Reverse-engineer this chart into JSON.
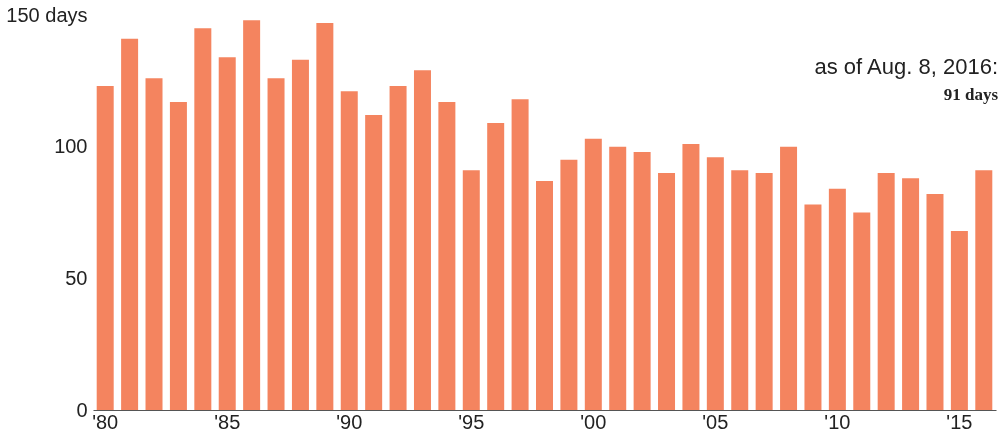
{
  "chart_data": {
    "type": "bar",
    "categories": [
      "'80",
      null,
      null,
      null,
      null,
      "'85",
      null,
      null,
      null,
      null,
      "'90",
      null,
      null,
      null,
      null,
      "'95",
      null,
      null,
      null,
      null,
      "'00",
      null,
      null,
      null,
      null,
      "'05",
      null,
      null,
      null,
      null,
      "'10",
      null,
      null,
      null,
      null,
      "'15",
      null
    ],
    "values": [
      123,
      141,
      126,
      117,
      145,
      134,
      148,
      126,
      133,
      147,
      121,
      112,
      123,
      129,
      117,
      91,
      109,
      118,
      87,
      95,
      103,
      100,
      98,
      90,
      101,
      96,
      91,
      90,
      100,
      78,
      84,
      75,
      90,
      88,
      82,
      68,
      91
    ],
    "color": "#f4845f",
    "ylim": [
      0,
      150
    ],
    "yticks": [
      0,
      50,
      100,
      {
        "value": 150,
        "label": "150 days"
      }
    ],
    "grid": false,
    "annotations": [
      "as of Aug. 8, 2016:",
      "91 days"
    ]
  }
}
